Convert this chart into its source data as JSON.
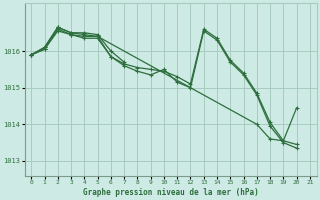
{
  "title": "Graphe pression niveau de la mer (hPa)",
  "background_color": "#ceeae4",
  "grid_color": "#a8ccbf",
  "line_color": "#2d6e3e",
  "xlim": [
    -0.5,
    21.5
  ],
  "ylim": [
    1012.6,
    1017.3
  ],
  "yticks": [
    1013,
    1014,
    1015,
    1016
  ],
  "xticks": [
    0,
    1,
    2,
    3,
    4,
    5,
    6,
    7,
    8,
    9,
    10,
    11,
    12,
    13,
    14,
    15,
    16,
    17,
    18,
    19,
    20,
    21
  ],
  "lines": [
    {
      "x": [
        0,
        1,
        2,
        3,
        4,
        5,
        6,
        7,
        8,
        9,
        10,
        11,
        12,
        13,
        14,
        15,
        16,
        17,
        18,
        19,
        20
      ],
      "y": [
        1015.9,
        1016.05,
        1016.6,
        1016.45,
        1016.4,
        1016.4,
        1015.85,
        1015.65,
        1015.55,
        1015.5,
        1015.45,
        1015.3,
        1015.1,
        1016.6,
        1016.35,
        1015.75,
        1015.4,
        1014.85,
        1014.05,
        1013.55,
        1013.45
      ]
    },
    {
      "x": [
        0,
        1,
        2,
        3,
        4,
        5,
        6,
        7,
        8,
        9,
        10,
        11,
        12,
        13,
        14,
        15,
        16,
        17,
        18,
        19,
        20
      ],
      "y": [
        1015.9,
        1016.05,
        1016.55,
        1016.45,
        1016.35,
        1016.35,
        1015.85,
        1015.6,
        1015.45,
        1015.35,
        1015.5,
        1015.15,
        1015.0,
        1016.55,
        1016.3,
        1015.7,
        1015.35,
        1014.8,
        1013.95,
        1013.5,
        1013.35
      ]
    },
    {
      "x": [
        0,
        1,
        2,
        3,
        4,
        5,
        6,
        7
      ],
      "y": [
        1015.9,
        1016.1,
        1016.65,
        1016.5,
        1016.5,
        1016.45,
        1016.0,
        1015.7
      ]
    },
    {
      "x": [
        0,
        1,
        2,
        3,
        4,
        5,
        17,
        18,
        19,
        20
      ],
      "y": [
        1015.9,
        1016.1,
        1016.65,
        1016.5,
        1016.45,
        1016.4,
        1014.0,
        1013.6,
        1013.55,
        1014.45
      ]
    }
  ]
}
